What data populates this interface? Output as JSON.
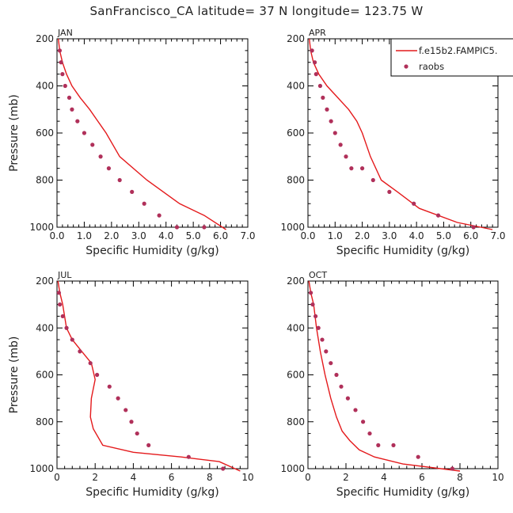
{
  "title": "SanFrancisco_CA  latitude= 37 N longitude= 123.75 W",
  "legend": {
    "model_label": "f.e15b2.FAMPIC5.",
    "obs_label": "raobs",
    "model_color": "#e41a1c",
    "obs_color": "#b0305a"
  },
  "chart_data": [
    {
      "type": "line",
      "panel": "JAN",
      "xlabel": "Specific Humidity (g/kg)",
      "ylabel": "Pressure (mb)",
      "xlim": [
        0,
        7
      ],
      "ylim": [
        1000,
        200
      ],
      "xticks": [
        0,
        1,
        2,
        3,
        4,
        5,
        6,
        7
      ],
      "xtick_labels": [
        "0.0",
        "1.0",
        "2.0",
        "3.0",
        "4.0",
        "5.0",
        "6.0",
        "7.0"
      ],
      "yticks": [
        200,
        400,
        600,
        800,
        1000
      ],
      "series": [
        {
          "name": "f.e15b2.FAMPIC5.",
          "style": "line",
          "x": [
            0.05,
            0.1,
            0.2,
            0.35,
            0.55,
            0.85,
            1.2,
            1.5,
            1.8,
            2.3,
            3.3,
            4.5,
            5.4,
            6.2
          ],
          "y": [
            200,
            250,
            300,
            350,
            400,
            450,
            500,
            550,
            600,
            700,
            800,
            900,
            950,
            1010
          ]
        },
        {
          "name": "raobs",
          "style": "points",
          "x": [
            0.1,
            0.15,
            0.2,
            0.3,
            0.45,
            0.55,
            0.75,
            1.0,
            1.3,
            1.6,
            1.9,
            2.3,
            2.75,
            3.2,
            3.75,
            4.4,
            5.4
          ],
          "y": [
            250,
            300,
            350,
            400,
            450,
            500,
            550,
            600,
            650,
            700,
            750,
            800,
            850,
            900,
            950,
            1000,
            1000
          ]
        }
      ]
    },
    {
      "type": "line",
      "panel": "APR",
      "xlabel": "Specific Humidity (g/kg)",
      "ylabel": "",
      "xlim": [
        0,
        7
      ],
      "ylim": [
        1000,
        200
      ],
      "xticks": [
        0,
        1,
        2,
        3,
        4,
        5,
        6,
        7
      ],
      "xtick_labels": [
        "0.0",
        "1.0",
        "2.0",
        "3.0",
        "4.0",
        "5.0",
        "6.0",
        "7.0"
      ],
      "yticks": [
        200,
        400,
        600,
        800,
        1000
      ],
      "series": [
        {
          "name": "f.e15b2.FAMPIC5.",
          "style": "line",
          "x": [
            0.05,
            0.1,
            0.2,
            0.4,
            0.7,
            1.1,
            1.5,
            1.8,
            2.0,
            2.3,
            2.7,
            3.3,
            4.1,
            5.5,
            6.8
          ],
          "y": [
            200,
            250,
            300,
            350,
            400,
            450,
            500,
            550,
            600,
            700,
            800,
            850,
            920,
            980,
            1010
          ]
        },
        {
          "name": "raobs",
          "style": "points",
          "x": [
            0.15,
            0.25,
            0.3,
            0.45,
            0.55,
            0.7,
            0.85,
            1.0,
            1.2,
            1.4,
            1.6,
            2.0,
            2.4,
            3.0,
            3.9,
            4.8,
            6.1
          ],
          "y": [
            250,
            300,
            350,
            400,
            450,
            500,
            550,
            600,
            650,
            700,
            750,
            750,
            800,
            850,
            900,
            950,
            1000
          ]
        }
      ]
    },
    {
      "type": "line",
      "panel": "JUL",
      "xlabel": "Specific Humidity (g/kg)",
      "ylabel": "Pressure (mb)",
      "xlim": [
        0,
        10
      ],
      "ylim": [
        1000,
        200
      ],
      "xticks": [
        0,
        2,
        4,
        6,
        8,
        10
      ],
      "xtick_labels": [
        "0",
        "2",
        "4",
        "6",
        "8",
        "10"
      ],
      "yticks": [
        200,
        400,
        600,
        800,
        1000
      ],
      "series": [
        {
          "name": "f.e15b2.FAMPIC5.",
          "style": "line",
          "x": [
            0.05,
            0.15,
            0.3,
            0.5,
            0.8,
            1.3,
            1.8,
            2.0,
            1.8,
            1.75,
            1.9,
            2.4,
            4.0,
            6.5,
            8.5,
            9.6
          ],
          "y": [
            200,
            250,
            300,
            400,
            450,
            500,
            550,
            620,
            700,
            780,
            830,
            900,
            930,
            950,
            970,
            1010
          ]
        },
        {
          "name": "raobs",
          "style": "points",
          "x": [
            0.1,
            0.15,
            0.3,
            0.5,
            0.8,
            1.2,
            1.75,
            2.1,
            2.75,
            3.2,
            3.6,
            3.9,
            4.2,
            4.8,
            6.9,
            8.7
          ],
          "y": [
            250,
            300,
            350,
            400,
            450,
            500,
            550,
            600,
            650,
            700,
            750,
            800,
            850,
            900,
            950,
            1000
          ]
        }
      ]
    },
    {
      "type": "line",
      "panel": "OCT",
      "xlabel": "Specific Humidity (g/kg)",
      "ylabel": "",
      "xlim": [
        0,
        10
      ],
      "ylim": [
        1000,
        200
      ],
      "xticks": [
        0,
        2,
        4,
        6,
        8,
        10
      ],
      "xtick_labels": [
        "0",
        "2",
        "4",
        "6",
        "8",
        "10"
      ],
      "yticks": [
        200,
        400,
        600,
        800,
        1000
      ],
      "series": [
        {
          "name": "f.e15b2.FAMPIC5.",
          "style": "line",
          "x": [
            0.05,
            0.15,
            0.3,
            0.45,
            0.65,
            0.9,
            1.2,
            1.5,
            1.8,
            2.2,
            2.7,
            3.5,
            5.0,
            8.0
          ],
          "y": [
            200,
            250,
            300,
            400,
            500,
            600,
            700,
            780,
            840,
            880,
            920,
            950,
            980,
            1010
          ]
        },
        {
          "name": "raobs",
          "style": "points",
          "x": [
            0.15,
            0.25,
            0.4,
            0.55,
            0.75,
            0.95,
            1.2,
            1.5,
            1.75,
            2.1,
            2.5,
            2.9,
            3.25,
            3.7,
            4.5,
            5.8,
            7.6
          ],
          "y": [
            250,
            300,
            350,
            400,
            450,
            500,
            550,
            600,
            650,
            700,
            750,
            800,
            850,
            900,
            900,
            950,
            1000
          ]
        }
      ]
    }
  ]
}
